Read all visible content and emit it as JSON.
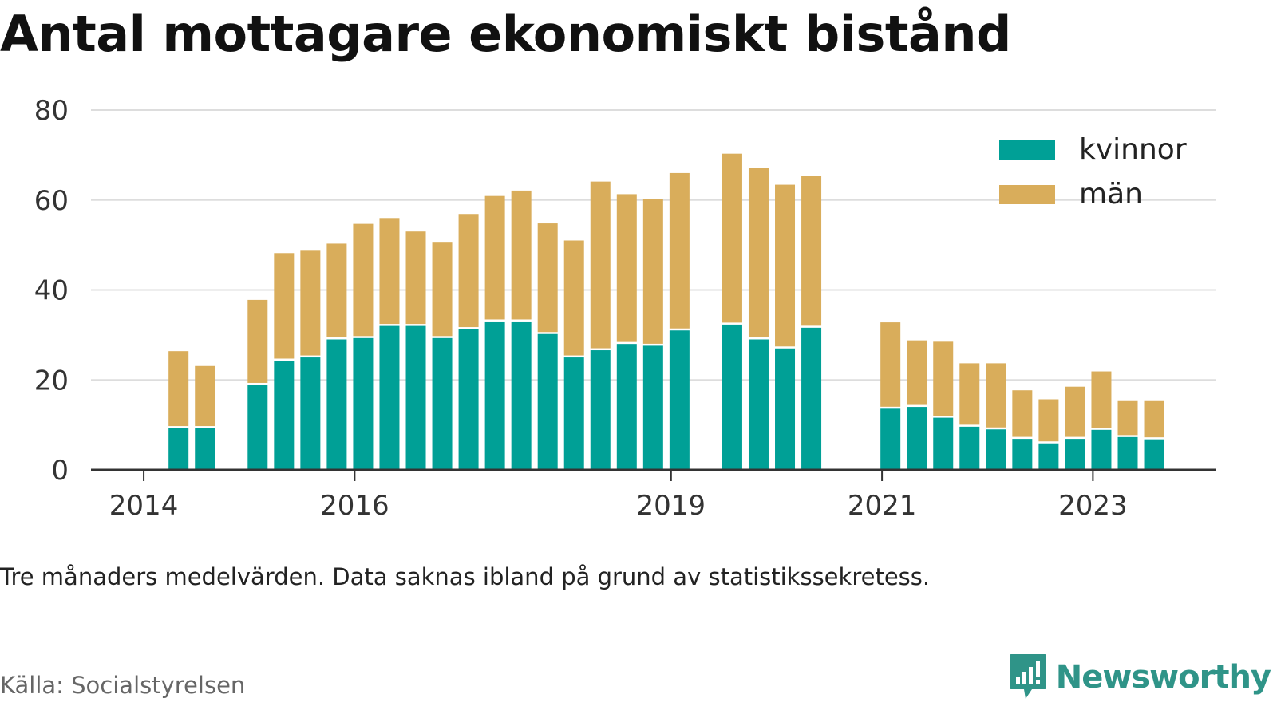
{
  "title": "Antal mottagare ekonomiskt bistånd",
  "note": "Tre månaders medelvärden. Data saknas ibland på grund av statistikssekretess.",
  "source": "Källa: Socialstyrelsen",
  "brand": "Newsworthy",
  "colors": {
    "kvinnor": "#00a096",
    "man": "#d9ad5b",
    "grid": "#dddddd",
    "axis": "#333333",
    "brand": "#2f9488"
  },
  "chart_data": {
    "type": "bar",
    "stacked": true,
    "ylim": [
      0,
      80
    ],
    "yticks": [
      0,
      20,
      40,
      60,
      80
    ],
    "xticks": [
      {
        "label": "2014",
        "x": 2014.0
      },
      {
        "label": "2016",
        "x": 2016.0
      },
      {
        "label": "2019",
        "x": 2019.0
      },
      {
        "label": "2021",
        "x": 2021.0
      },
      {
        "label": "2023",
        "x": 2023.0
      }
    ],
    "xlim": [
      2013.5,
      2024.17
    ],
    "grid": true,
    "legend_position": "top-right",
    "series": [
      {
        "name": "kvinnor",
        "color_key": "kvinnor"
      },
      {
        "name": "män",
        "color_key": "man"
      }
    ],
    "periods": [
      {
        "x": 2014.33,
        "kvinnor": 9.3,
        "man": 17.1
      },
      {
        "x": 2014.58,
        "kvinnor": 9.3,
        "man": 13.8
      },
      {
        "x": 2015.08,
        "kvinnor": 18.9,
        "man": 18.9
      },
      {
        "x": 2015.33,
        "kvinnor": 24.3,
        "man": 23.9
      },
      {
        "x": 2015.58,
        "kvinnor": 25.0,
        "man": 23.9
      },
      {
        "x": 2015.83,
        "kvinnor": 29.0,
        "man": 21.3
      },
      {
        "x": 2016.08,
        "kvinnor": 29.3,
        "man": 25.4
      },
      {
        "x": 2016.33,
        "kvinnor": 32.0,
        "man": 24.0
      },
      {
        "x": 2016.58,
        "kvinnor": 32.0,
        "man": 21.0
      },
      {
        "x": 2016.83,
        "kvinnor": 29.3,
        "man": 21.4
      },
      {
        "x": 2017.08,
        "kvinnor": 31.3,
        "man": 25.6
      },
      {
        "x": 2017.33,
        "kvinnor": 33.0,
        "man": 27.9
      },
      {
        "x": 2017.58,
        "kvinnor": 33.0,
        "man": 29.1
      },
      {
        "x": 2017.83,
        "kvinnor": 30.2,
        "man": 24.6
      },
      {
        "x": 2018.08,
        "kvinnor": 25.0,
        "man": 26.0
      },
      {
        "x": 2018.33,
        "kvinnor": 26.6,
        "man": 37.5
      },
      {
        "x": 2018.58,
        "kvinnor": 28.0,
        "man": 33.3
      },
      {
        "x": 2018.83,
        "kvinnor": 27.6,
        "man": 32.7
      },
      {
        "x": 2019.08,
        "kvinnor": 31.0,
        "man": 35.0
      },
      {
        "x": 2019.58,
        "kvinnor": 32.3,
        "man": 38.0
      },
      {
        "x": 2019.83,
        "kvinnor": 29.0,
        "man": 38.1
      },
      {
        "x": 2020.08,
        "kvinnor": 27.0,
        "man": 36.4
      },
      {
        "x": 2020.33,
        "kvinnor": 31.6,
        "man": 33.8
      },
      {
        "x": 2021.08,
        "kvinnor": 13.6,
        "man": 19.2
      },
      {
        "x": 2021.33,
        "kvinnor": 14.0,
        "man": 14.8
      },
      {
        "x": 2021.58,
        "kvinnor": 11.6,
        "man": 16.9
      },
      {
        "x": 2021.83,
        "kvinnor": 9.6,
        "man": 14.1
      },
      {
        "x": 2022.08,
        "kvinnor": 9.0,
        "man": 14.7
      },
      {
        "x": 2022.33,
        "kvinnor": 6.9,
        "man": 10.8
      },
      {
        "x": 2022.58,
        "kvinnor": 5.9,
        "man": 9.8
      },
      {
        "x": 2022.83,
        "kvinnor": 6.9,
        "man": 11.6
      },
      {
        "x": 2023.08,
        "kvinnor": 8.9,
        "man": 13.0
      },
      {
        "x": 2023.33,
        "kvinnor": 7.3,
        "man": 8.0
      },
      {
        "x": 2023.58,
        "kvinnor": 6.8,
        "man": 8.5
      }
    ]
  }
}
